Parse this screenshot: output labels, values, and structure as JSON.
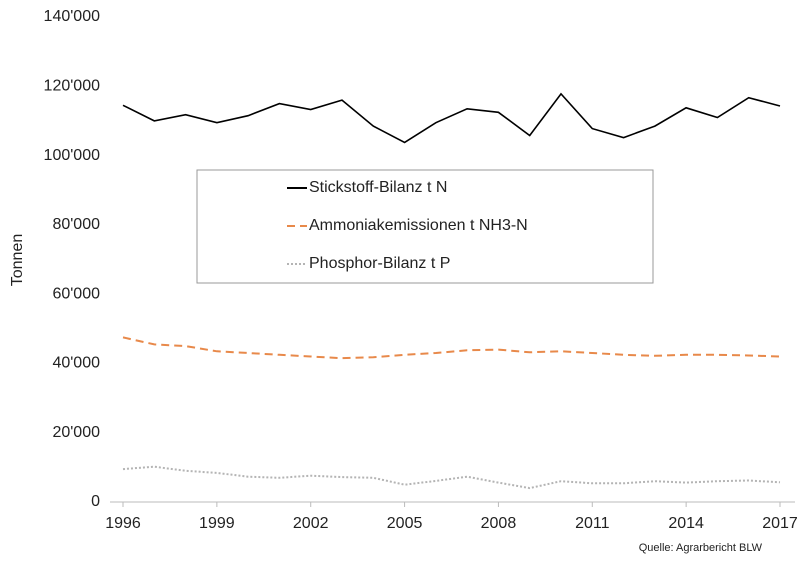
{
  "chart_data": {
    "type": "line",
    "y_label": "Tonnen",
    "source": "Quelle: Agrarbericht BLW",
    "x": [
      1996,
      1997,
      1998,
      1999,
      2000,
      2001,
      2002,
      2003,
      2004,
      2005,
      2006,
      2007,
      2008,
      2009,
      2010,
      2011,
      2012,
      2013,
      2014,
      2015,
      2016,
      2017
    ],
    "xlim": [
      1996,
      2017
    ],
    "xticks": [
      1996,
      1999,
      2002,
      2005,
      2008,
      2011,
      2014,
      2017
    ],
    "ylim": [
      0,
      140000
    ],
    "yticks": [
      0,
      {
        "value": 20000,
        "label": "20'000"
      },
      {
        "value": 40000,
        "label": "40'000"
      },
      {
        "value": 60000,
        "label": "60'000"
      },
      {
        "value": 80000,
        "label": "80'000"
      },
      {
        "value": 100000,
        "label": "100'000"
      },
      {
        "value": 120000,
        "label": "120'000"
      },
      {
        "value": 140000,
        "label": "140'000"
      }
    ],
    "series": [
      {
        "name": "Stickstoff-Bilanz t N",
        "color": "#000000",
        "style": "solid",
        "values": [
          114500,
          110000,
          111800,
          109500,
          111500,
          115000,
          113300,
          116000,
          108500,
          103800,
          109500,
          113500,
          112500,
          105800,
          117800,
          107800,
          105200,
          108500,
          113800,
          111000,
          116700,
          114300
        ]
      },
      {
        "name": "Ammoniakemissionen t NH3-N",
        "color": "#e8894a",
        "style": "dashed",
        "values": [
          47500,
          45500,
          45000,
          43500,
          43000,
          42500,
          42000,
          41500,
          41800,
          42500,
          43000,
          43800,
          44000,
          43200,
          43500,
          43000,
          42500,
          42200,
          42500,
          42500,
          42300,
          42000
        ]
      },
      {
        "name": "Phosphor-Bilanz t P",
        "color": "#b4b4b4",
        "style": "dotted",
        "values": [
          9500,
          10200,
          9000,
          8400,
          7300,
          7000,
          7600,
          7200,
          7000,
          5000,
          6100,
          7300,
          5600,
          4000,
          6000,
          5400,
          5400,
          6000,
          5600,
          6000,
          6200,
          5700
        ]
      }
    ]
  }
}
